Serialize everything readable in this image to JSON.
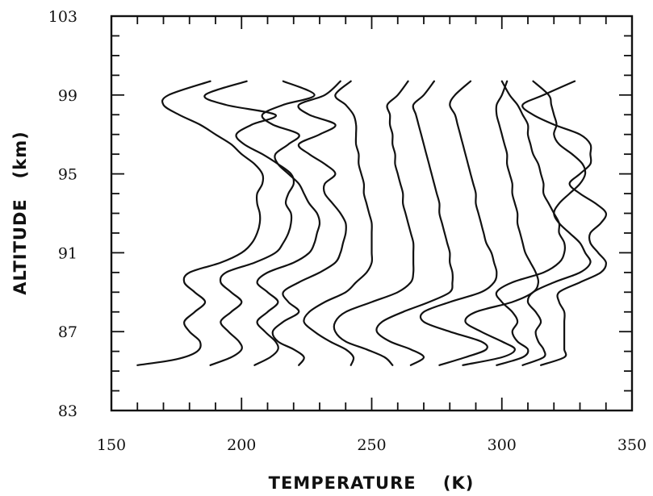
{
  "chart_data": {
    "type": "line",
    "title": "",
    "xlabel": "TEMPERATURE    (K)",
    "ylabel": "ALTITUDE   (km)",
    "xlim": [
      150,
      350
    ],
    "ylim": [
      83,
      103
    ],
    "xticks": [
      150,
      200,
      250,
      300,
      350
    ],
    "yticks": [
      83,
      87,
      91,
      95,
      99,
      103
    ],
    "grid": false,
    "legend": "none",
    "line_color": "#111111",
    "series": [
      {
        "x": [
          160,
          175,
          183,
          184,
          180,
          178,
          182,
          186,
          182,
          178,
          180,
          192,
          200,
          204,
          206,
          207,
          207,
          206,
          206,
          208,
          208,
          205,
          200,
          196,
          190,
          184,
          176,
          170,
          172,
          188
        ],
        "y": [
          85.3,
          85.6,
          86.0,
          86.5,
          87.0,
          87.5,
          88.0,
          88.5,
          89.0,
          89.5,
          90.0,
          90.5,
          91.0,
          91.5,
          92.0,
          92.5,
          93.0,
          93.5,
          94.0,
          94.5,
          95.0,
          95.5,
          96.0,
          96.5,
          97.0,
          97.5,
          98.0,
          98.5,
          99.0,
          99.7
        ]
      },
      {
        "x": [
          188,
          196,
          200,
          199,
          195,
          192,
          196,
          200,
          196,
          192,
          194,
          205,
          213,
          216,
          218,
          219,
          219,
          217,
          218,
          220,
          219,
          214,
          208,
          201,
          198,
          204,
          213,
          194,
          186,
          202
        ],
        "y": [
          85.3,
          85.7,
          86.1,
          86.5,
          87.0,
          87.5,
          88.0,
          88.5,
          89.0,
          89.5,
          90.0,
          90.5,
          91.0,
          91.5,
          92.0,
          92.5,
          93.0,
          93.5,
          94.0,
          94.5,
          95.0,
          95.5,
          96.0,
          96.5,
          97.0,
          97.5,
          98.0,
          98.5,
          99.0,
          99.7
        ]
      },
      {
        "x": [
          205,
          211,
          214,
          213,
          209,
          206,
          210,
          214,
          210,
          206,
          210,
          220,
          226,
          228,
          229,
          230,
          229,
          226,
          224,
          222,
          218,
          214,
          213,
          218,
          222,
          212,
          208,
          216,
          228,
          216
        ],
        "y": [
          85.3,
          85.7,
          86.1,
          86.5,
          87.0,
          87.5,
          88.0,
          88.5,
          89.0,
          89.5,
          90.0,
          90.5,
          91.0,
          91.5,
          92.0,
          92.5,
          93.0,
          93.5,
          94.0,
          94.5,
          95.0,
          95.5,
          96.0,
          96.5,
          97.0,
          97.5,
          98.0,
          98.5,
          99.0,
          99.7
        ]
      },
      {
        "x": [
          222,
          224,
          220,
          214,
          212,
          216,
          222,
          218,
          216,
          222,
          230,
          236,
          238,
          239,
          240,
          240,
          238,
          235,
          232,
          232,
          236,
          232,
          226,
          222,
          230,
          236,
          226,
          222,
          232,
          238
        ],
        "y": [
          85.3,
          85.7,
          86.1,
          86.5,
          87.0,
          87.5,
          88.0,
          88.5,
          89.0,
          89.5,
          90.0,
          90.5,
          91.0,
          91.5,
          92.0,
          92.5,
          93.0,
          93.5,
          94.0,
          94.5,
          95.0,
          95.5,
          96.0,
          96.5,
          97.0,
          97.5,
          98.0,
          98.5,
          99.0,
          99.7
        ]
      },
      {
        "x": [
          242,
          243,
          240,
          234,
          228,
          224,
          226,
          232,
          240,
          244,
          248,
          250,
          250,
          250,
          250,
          250,
          249,
          248,
          247,
          247,
          246,
          245,
          245,
          244,
          244,
          244,
          243,
          240,
          236,
          242
        ],
        "y": [
          85.3,
          85.7,
          86.1,
          86.5,
          87.0,
          87.5,
          88.0,
          88.5,
          89.0,
          89.5,
          90.0,
          90.5,
          91.0,
          91.5,
          92.0,
          92.5,
          93.0,
          93.5,
          94.0,
          94.5,
          95.0,
          95.5,
          96.0,
          96.5,
          97.0,
          97.5,
          98.0,
          98.5,
          99.0,
          99.7
        ]
      },
      {
        "x": [
          258,
          255,
          248,
          240,
          236,
          236,
          240,
          250,
          260,
          265,
          266,
          266,
          266,
          266,
          265,
          264,
          263,
          262,
          262,
          261,
          260,
          259,
          259,
          258,
          258,
          257,
          257,
          256,
          260,
          264
        ],
        "y": [
          85.3,
          85.7,
          86.1,
          86.5,
          87.0,
          87.5,
          88.0,
          88.5,
          89.0,
          89.5,
          90.0,
          90.5,
          91.0,
          91.5,
          92.0,
          92.5,
          93.0,
          93.5,
          94.0,
          94.5,
          95.0,
          95.5,
          96.0,
          96.5,
          97.0,
          97.5,
          98.0,
          98.5,
          99.0,
          99.7
        ]
      },
      {
        "x": [
          265,
          270,
          265,
          257,
          252,
          254,
          262,
          272,
          280,
          281,
          281,
          280,
          280,
          279,
          278,
          277,
          276,
          276,
          275,
          274,
          273,
          272,
          271,
          270,
          269,
          268,
          267,
          266,
          270,
          274
        ],
        "y": [
          85.3,
          85.7,
          86.1,
          86.5,
          87.0,
          87.5,
          88.0,
          88.5,
          89.0,
          89.5,
          90.0,
          90.5,
          91.0,
          91.5,
          92.0,
          92.5,
          93.0,
          93.5,
          94.0,
          94.5,
          95.0,
          95.5,
          96.0,
          96.5,
          97.0,
          97.5,
          98.0,
          98.5,
          99.0,
          99.7
        ]
      },
      {
        "x": [
          276,
          286,
          294,
          292,
          280,
          270,
          270,
          280,
          292,
          297,
          298,
          297,
          296,
          294,
          293,
          292,
          291,
          290,
          290,
          289,
          288,
          287,
          286,
          285,
          284,
          283,
          282,
          280,
          282,
          288
        ],
        "y": [
          85.3,
          85.7,
          86.1,
          86.5,
          87.0,
          87.5,
          88.0,
          88.5,
          89.0,
          89.5,
          90.0,
          90.5,
          91.0,
          91.5,
          92.0,
          92.5,
          93.0,
          93.5,
          94.0,
          94.5,
          95.0,
          95.5,
          96.0,
          96.5,
          97.0,
          97.5,
          98.0,
          98.5,
          99.0,
          99.7
        ]
      },
      {
        "x": [
          285,
          300,
          305,
          300,
          292,
          286,
          290,
          304,
          312,
          314,
          313,
          311,
          309,
          308,
          307,
          306,
          306,
          305,
          304,
          304,
          303,
          302,
          302,
          301,
          300,
          299,
          298,
          298,
          300,
          302
        ],
        "y": [
          85.3,
          85.7,
          86.1,
          86.5,
          87.0,
          87.5,
          88.0,
          88.5,
          89.0,
          89.5,
          90.0,
          90.5,
          91.0,
          91.5,
          92.0,
          92.5,
          93.0,
          93.5,
          94.0,
          94.5,
          95.0,
          95.5,
          96.0,
          96.5,
          97.0,
          97.5,
          98.0,
          98.5,
          99.0,
          99.7
        ]
      },
      {
        "x": [
          298,
          308,
          310,
          306,
          304,
          306,
          304,
          300,
          298,
          304,
          316,
          322,
          324,
          324,
          322,
          322,
          320,
          318,
          316,
          316,
          315,
          314,
          312,
          311,
          310,
          310,
          308,
          306,
          303,
          300
        ],
        "y": [
          85.3,
          85.7,
          86.1,
          86.5,
          87.0,
          87.5,
          88.0,
          88.5,
          89.0,
          89.5,
          90.0,
          90.5,
          91.0,
          91.5,
          92.0,
          92.5,
          93.0,
          93.5,
          94.0,
          94.5,
          95.0,
          95.5,
          96.0,
          96.5,
          97.0,
          97.5,
          98.0,
          98.5,
          99.0,
          99.7
        ]
      },
      {
        "x": [
          308,
          316,
          316,
          314,
          313,
          315,
          313,
          310,
          312,
          320,
          330,
          334,
          332,
          330,
          326,
          322,
          320,
          322,
          326,
          330,
          332,
          331,
          327,
          322,
          320,
          321,
          320,
          319,
          318,
          312
        ],
        "y": [
          85.3,
          85.7,
          86.1,
          86.5,
          87.0,
          87.5,
          88.0,
          88.5,
          89.0,
          89.5,
          90.0,
          90.5,
          91.0,
          91.5,
          92.0,
          92.5,
          93.0,
          93.5,
          94.0,
          94.5,
          95.0,
          95.5,
          96.0,
          96.5,
          97.0,
          97.5,
          98.0,
          98.5,
          99.0,
          99.7
        ]
      },
      {
        "x": [
          315,
          324,
          324,
          324,
          324,
          324,
          324,
          322,
          322,
          330,
          338,
          340,
          337,
          334,
          334,
          338,
          340,
          336,
          330,
          326,
          330,
          334,
          334,
          334,
          330,
          320,
          312,
          308,
          316,
          328
        ],
        "y": [
          85.3,
          85.7,
          86.1,
          86.5,
          87.0,
          87.5,
          88.0,
          88.5,
          89.0,
          89.5,
          90.0,
          90.5,
          91.0,
          91.5,
          92.0,
          92.5,
          93.0,
          93.5,
          94.0,
          94.5,
          95.0,
          95.5,
          96.0,
          96.5,
          97.0,
          97.5,
          98.0,
          98.5,
          99.0,
          99.7
        ]
      }
    ]
  }
}
